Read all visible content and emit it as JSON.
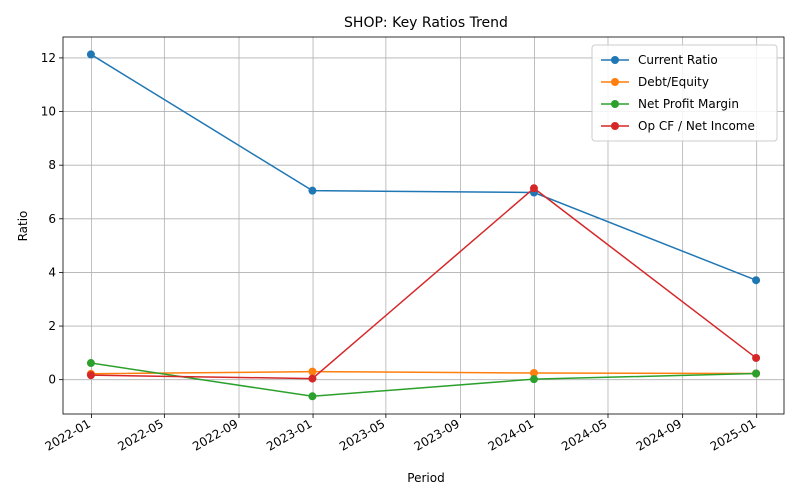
{
  "chart_data": {
    "type": "line",
    "title": "SHOP: Key Ratios Trend",
    "xlabel": "Period",
    "ylabel": "Ratio",
    "x": [
      "2021-12-31",
      "2022-12-31",
      "2023-12-31",
      "2024-12-31"
    ],
    "x_ticks": [
      "2022-01",
      "2022-05",
      "2022-09",
      "2023-01",
      "2023-05",
      "2023-09",
      "2024-01",
      "2024-05",
      "2024-09",
      "2025-01"
    ],
    "xlim": [
      "2021-11-15",
      "2025-02-15"
    ],
    "y_ticks": [
      0,
      2,
      4,
      6,
      8,
      10,
      12
    ],
    "ylim": [
      -1.28,
      12.78
    ],
    "grid": true,
    "legend_position": "upper-right",
    "series": [
      {
        "name": "Current Ratio",
        "color": "#1f77b4",
        "values": [
          12.13,
          7.05,
          6.98,
          3.71
        ]
      },
      {
        "name": "Debt/Equity",
        "color": "#ff7f0e",
        "values": [
          0.22,
          0.3,
          0.25,
          0.23
        ]
      },
      {
        "name": "Net Profit Margin",
        "color": "#2ca02c",
        "values": [
          0.62,
          -0.62,
          0.02,
          0.23
        ]
      },
      {
        "name": "Op CF / Net Income",
        "color": "#d62728",
        "values": [
          0.17,
          0.04,
          7.14,
          0.81
        ]
      }
    ]
  }
}
